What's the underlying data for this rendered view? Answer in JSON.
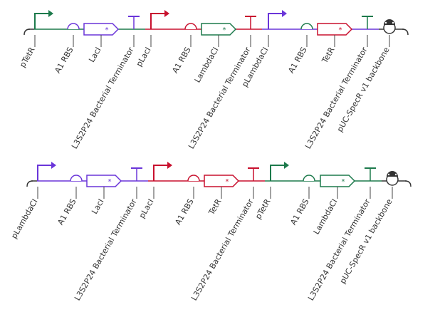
{
  "colors": {
    "purple": "#6a35d9",
    "red": "#c8102e",
    "green": "#1d7a4c",
    "backbone": "#333333",
    "label_line": "#444444"
  },
  "constructs": [
    {
      "parts": [
        {
          "type": "promoter",
          "label": "pTetR",
          "color": "green"
        },
        {
          "type": "rbs",
          "label": "A1 RBS",
          "color": "purple"
        },
        {
          "type": "cds",
          "label": "LacI",
          "color": "purple"
        },
        {
          "type": "terminator",
          "label": "L3S2P24 Bacterial Terminator",
          "color": "purple"
        },
        {
          "type": "promoter",
          "label": "pLacI",
          "color": "red"
        },
        {
          "type": "rbs",
          "label": "A1 RBS",
          "color": "red"
        },
        {
          "type": "cds",
          "label": "LambdaCI",
          "color": "green"
        },
        {
          "type": "terminator",
          "label": "L3S2P24 Bacterial Terminator",
          "color": "red"
        },
        {
          "type": "promoter",
          "label": "pLambdaCI",
          "color": "purple"
        },
        {
          "type": "rbs",
          "label": "A1 RBS",
          "color": "green"
        },
        {
          "type": "cds",
          "label": "TetR",
          "color": "red"
        },
        {
          "type": "terminator",
          "label": "L3S2P24 Bacterial Terminator",
          "color": "green"
        },
        {
          "type": "origin",
          "label": "pUC-SpecR v1 backbone",
          "color": "backbone"
        }
      ]
    },
    {
      "parts": [
        {
          "type": "promoter",
          "label": "pLambdaCI",
          "color": "purple"
        },
        {
          "type": "rbs",
          "label": "A1 RBS",
          "color": "purple"
        },
        {
          "type": "cds",
          "label": "LacI",
          "color": "purple"
        },
        {
          "type": "terminator",
          "label": "L3S2P24 Bacterial Terminator",
          "color": "purple"
        },
        {
          "type": "promoter",
          "label": "pLacI",
          "color": "red"
        },
        {
          "type": "rbs",
          "label": "A1 RBS",
          "color": "red"
        },
        {
          "type": "cds",
          "label": "TetR",
          "color": "red"
        },
        {
          "type": "terminator",
          "label": "L3S2P24 Bacterial Terminator",
          "color": "red"
        },
        {
          "type": "promoter",
          "label": "pTetR",
          "color": "green"
        },
        {
          "type": "rbs",
          "label": "A1 RBS",
          "color": "green"
        },
        {
          "type": "cds",
          "label": "LambdaCI",
          "color": "green"
        },
        {
          "type": "terminator",
          "label": "L3S2P24 Bacterial Terminator",
          "color": "green"
        },
        {
          "type": "origin",
          "label": "pUC-SpecR v1 backbone",
          "color": "backbone"
        }
      ]
    }
  ]
}
